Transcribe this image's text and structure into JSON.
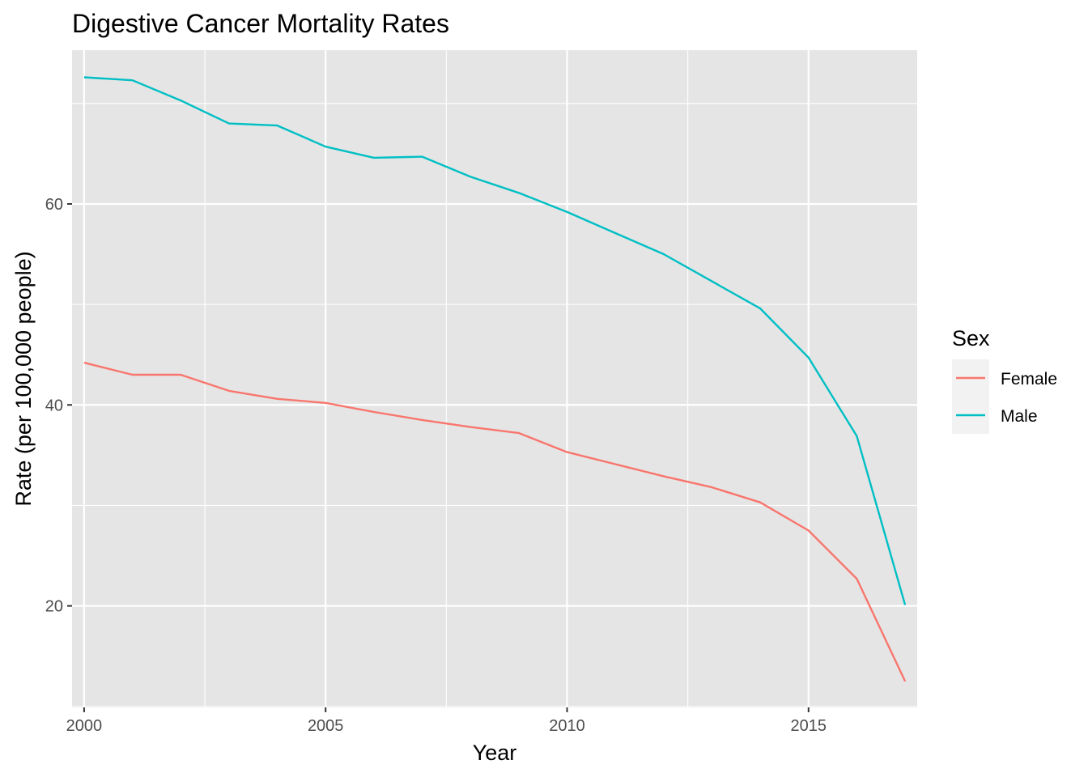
{
  "chart_data": {
    "type": "line",
    "title": "Digestive Cancer Mortality Rates",
    "xlabel": "Year",
    "ylabel": "Rate (per 100,000 people)",
    "xlim": [
      1999.75,
      2017.25
    ],
    "ylim": [
      9.9,
      75.3
    ],
    "x_ticks": [
      2000,
      2005,
      2010,
      2015
    ],
    "x_minor": [
      2002.5,
      2007.5,
      2012.5,
      2017.5
    ],
    "y_ticks": [
      20,
      40,
      60
    ],
    "y_minor": [
      10,
      30,
      50,
      70
    ],
    "grid": true,
    "legend": {
      "title": "Sex",
      "position": "right"
    },
    "x": [
      2000,
      2001,
      2002,
      2003,
      2004,
      2005,
      2006,
      2007,
      2008,
      2009,
      2010,
      2011,
      2012,
      2013,
      2014,
      2015,
      2016,
      2017
    ],
    "series": [
      {
        "name": "Female",
        "color": "#F8766D",
        "values": [
          44.2,
          43.0,
          43.0,
          41.4,
          40.6,
          40.2,
          39.3,
          38.5,
          37.8,
          37.2,
          35.3,
          34.1,
          32.9,
          31.8,
          30.3,
          27.5,
          22.7,
          12.5
        ]
      },
      {
        "name": "Male",
        "color": "#00BFC4",
        "values": [
          72.6,
          72.3,
          70.3,
          68.0,
          67.8,
          65.7,
          64.6,
          64.7,
          62.7,
          61.1,
          59.2,
          57.1,
          55.0,
          52.3,
          49.6,
          44.7,
          36.9,
          20.1
        ]
      }
    ]
  }
}
